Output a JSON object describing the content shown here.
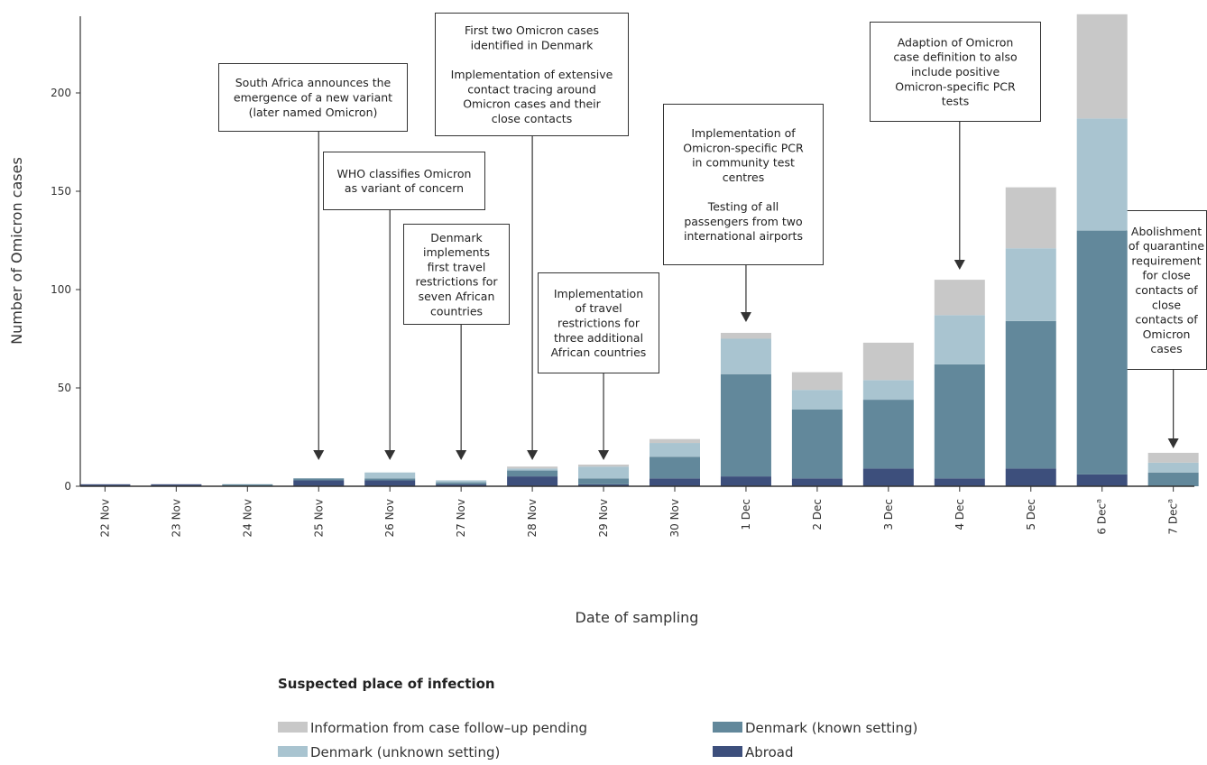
{
  "chart_data": {
    "type": "bar",
    "stacked": true,
    "categories": [
      "22 Nov",
      "23 Nov",
      "24 Nov",
      "25 Nov",
      "26 Nov",
      "27 Nov",
      "28 Nov",
      "29 Nov",
      "30 Nov",
      "1 Dec",
      "2 Dec",
      "3 Dec",
      "4 Dec",
      "5 Dec",
      "6 Dec",
      "7 Dec"
    ],
    "category_superscripts": [
      "",
      "",
      "",
      "",
      "",
      "",
      "",
      "",
      "",
      "",
      "",
      "",
      "",
      "",
      "a",
      "a"
    ],
    "series": [
      {
        "name": "Abroad",
        "color": "#3d4f7c",
        "values": [
          1,
          1,
          0,
          3,
          3,
          1,
          5,
          1,
          4,
          5,
          4,
          9,
          4,
          9,
          6,
          0
        ]
      },
      {
        "name": "Denmark (known setting)",
        "color": "#62889b",
        "values": [
          0,
          0,
          1,
          1,
          1,
          1,
          3,
          3,
          11,
          52,
          35,
          35,
          58,
          75,
          124,
          7
        ]
      },
      {
        "name": "Denmark (unknown setting)",
        "color": "#a9c4d0",
        "values": [
          0,
          0,
          0,
          0,
          3,
          1,
          1,
          6,
          7,
          18,
          10,
          10,
          25,
          37,
          57,
          5
        ]
      },
      {
        "name": "Information from case follow–up pending",
        "color": "#c8c8c8",
        "values": [
          0,
          0,
          0,
          0,
          0,
          0,
          1,
          1,
          2,
          3,
          9,
          19,
          18,
          31,
          53,
          5
        ]
      }
    ],
    "ylabel": "Number of Omicron cases",
    "xlabel": "Date of sampling",
    "ylim": [
      0,
      240
    ],
    "yticks": [
      0,
      50,
      100,
      150,
      200
    ],
    "annotations": [
      {
        "category": "25 Nov",
        "lines": [
          "South Africa  announces the",
          "emergence of a new variant",
          "(later named Omicron)"
        ]
      },
      {
        "category": "26 Nov",
        "lines": [
          "WHO classifies Omicron",
          "as variant of concern"
        ]
      },
      {
        "category": "27 Nov",
        "lines": [
          "Denmark",
          "implements",
          "first travel",
          "restrictions for",
          "seven African",
          "countries"
        ]
      },
      {
        "category": "28 Nov",
        "lines": [
          "First two Omicron cases",
          "identified in Denmark",
          "",
          "Implementation of extensive",
          "contact tracing around",
          "Omicron cases and their",
          "close contacts"
        ]
      },
      {
        "category": "29 Nov",
        "lines": [
          "Implementation",
          "of travel",
          "restrictions for",
          "three additional",
          "African countries"
        ]
      },
      {
        "category": "1 Dec",
        "lines": [
          "Implementation of",
          "Omicron-specific PCR",
          "in community test",
          "centres",
          "",
          "Testing of all",
          "passengers from two",
          "international airports"
        ]
      },
      {
        "category": "4 Dec",
        "lines": [
          "Adaption of Omicron",
          "case definition to also",
          "include positive",
          "Omicron-specific PCR",
          "tests"
        ]
      },
      {
        "category": "7 Dec",
        "lines": [
          "Abolishment",
          "of quarantine",
          "requirement",
          "for close",
          "contacts of",
          "close",
          "contacts of",
          "Omicron",
          "cases"
        ]
      }
    ],
    "legend": {
      "title": "Suspected place of infection",
      "items": [
        "Information from case follow–up pending",
        "Denmark (known setting)",
        "Denmark (unknown setting)",
        "Abroad"
      ],
      "placement": "bottom"
    }
  }
}
